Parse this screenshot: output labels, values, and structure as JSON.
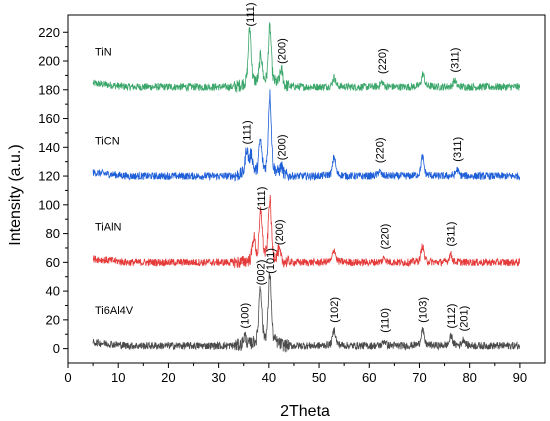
{
  "chart_data": {
    "type": "line",
    "xlabel": "2Theta",
    "ylabel": "Intensity (a.u.)",
    "xlim": [
      0,
      95
    ],
    "ylim": [
      -10,
      232
    ],
    "xticks": [
      0,
      10,
      20,
      30,
      40,
      50,
      60,
      70,
      80,
      90
    ],
    "yticks": [
      0,
      20,
      40,
      60,
      80,
      100,
      120,
      140,
      160,
      180,
      200,
      220
    ],
    "grid": false,
    "series": [
      {
        "name": "TiN",
        "color": "#3aa66a",
        "baseline": 182,
        "x_start": 5,
        "x_end": 90,
        "peaks": [
          {
            "x": 36.2,
            "height": 36,
            "label": "(111)"
          },
          {
            "x": 38.4,
            "height": 18,
            "label": ""
          },
          {
            "x": 40.2,
            "height": 36,
            "label": ""
          },
          {
            "x": 42.5,
            "height": 10,
            "label": "(200)"
          },
          {
            "x": 53.0,
            "height": 6,
            "label": ""
          },
          {
            "x": 62.5,
            "height": 3,
            "label": "(220)"
          },
          {
            "x": 70.7,
            "height": 8,
            "label": ""
          },
          {
            "x": 77.0,
            "height": 4,
            "label": "(311)"
          }
        ]
      },
      {
        "name": "TiCN",
        "color": "#1f5fd8",
        "baseline": 120,
        "x_start": 5,
        "x_end": 90,
        "peaks": [
          {
            "x": 35.6,
            "height": 16,
            "label": "(111)"
          },
          {
            "x": 36.5,
            "height": 12,
            "label": ""
          },
          {
            "x": 38.3,
            "height": 20,
            "label": ""
          },
          {
            "x": 40.2,
            "height": 50,
            "label": ""
          },
          {
            "x": 42.5,
            "height": 5,
            "label": "(200)"
          },
          {
            "x": 53.0,
            "height": 12,
            "label": ""
          },
          {
            "x": 62.0,
            "height": 3,
            "label": "(220)"
          },
          {
            "x": 70.6,
            "height": 12,
            "label": ""
          },
          {
            "x": 77.5,
            "height": 4,
            "label": "(311)"
          }
        ]
      },
      {
        "name": "TiAlN",
        "color": "#e53a3a",
        "baseline": 60,
        "x_start": 5,
        "x_end": 90,
        "peaks": [
          {
            "x": 37.0,
            "height": 14,
            "label": ""
          },
          {
            "x": 38.4,
            "height": 30,
            "label": "(111)"
          },
          {
            "x": 40.2,
            "height": 38,
            "label": ""
          },
          {
            "x": 42.0,
            "height": 6,
            "label": "(200)"
          },
          {
            "x": 53.0,
            "height": 8,
            "label": ""
          },
          {
            "x": 63.0,
            "height": 3,
            "label": "(220)"
          },
          {
            "x": 70.6,
            "height": 10,
            "label": ""
          },
          {
            "x": 76.2,
            "height": 5,
            "label": "(311)"
          }
        ]
      },
      {
        "name": "Ti6Al4V",
        "color": "#4a4a4a",
        "baseline": 2,
        "x_start": 5,
        "x_end": 90,
        "peaks": [
          {
            "x": 35.2,
            "height": 6,
            "label": "(100)"
          },
          {
            "x": 38.3,
            "height": 36,
            "label": "(002)"
          },
          {
            "x": 40.2,
            "height": 44,
            "label": "(101)"
          },
          {
            "x": 53.0,
            "height": 10,
            "label": "(102)"
          },
          {
            "x": 63.0,
            "height": 3,
            "label": "(110)"
          },
          {
            "x": 70.6,
            "height": 10,
            "label": "(103)"
          },
          {
            "x": 76.3,
            "height": 6,
            "label": "(112)"
          },
          {
            "x": 78.8,
            "height": 4,
            "label": "(201)"
          }
        ]
      }
    ]
  }
}
